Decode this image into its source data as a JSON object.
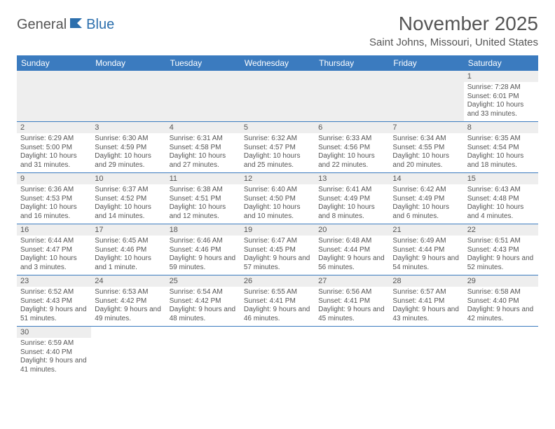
{
  "logo": {
    "general": "General",
    "blue": "Blue"
  },
  "title": "November 2025",
  "location": "Saint Johns, Missouri, United States",
  "day_headers": [
    "Sunday",
    "Monday",
    "Tuesday",
    "Wednesday",
    "Thursday",
    "Friday",
    "Saturday"
  ],
  "colors": {
    "header_bg": "#3b7bbf",
    "header_text": "#ffffff",
    "daynum_bg": "#eeeeee",
    "border": "#3b7bbf",
    "text": "#555555",
    "logo_blue": "#2c6fad"
  },
  "weeks": [
    [
      null,
      null,
      null,
      null,
      null,
      null,
      {
        "n": "1",
        "sr": "Sunrise: 7:28 AM",
        "ss": "Sunset: 6:01 PM",
        "dl": "Daylight: 10 hours and 33 minutes."
      }
    ],
    [
      {
        "n": "2",
        "sr": "Sunrise: 6:29 AM",
        "ss": "Sunset: 5:00 PM",
        "dl": "Daylight: 10 hours and 31 minutes."
      },
      {
        "n": "3",
        "sr": "Sunrise: 6:30 AM",
        "ss": "Sunset: 4:59 PM",
        "dl": "Daylight: 10 hours and 29 minutes."
      },
      {
        "n": "4",
        "sr": "Sunrise: 6:31 AM",
        "ss": "Sunset: 4:58 PM",
        "dl": "Daylight: 10 hours and 27 minutes."
      },
      {
        "n": "5",
        "sr": "Sunrise: 6:32 AM",
        "ss": "Sunset: 4:57 PM",
        "dl": "Daylight: 10 hours and 25 minutes."
      },
      {
        "n": "6",
        "sr": "Sunrise: 6:33 AM",
        "ss": "Sunset: 4:56 PM",
        "dl": "Daylight: 10 hours and 22 minutes."
      },
      {
        "n": "7",
        "sr": "Sunrise: 6:34 AM",
        "ss": "Sunset: 4:55 PM",
        "dl": "Daylight: 10 hours and 20 minutes."
      },
      {
        "n": "8",
        "sr": "Sunrise: 6:35 AM",
        "ss": "Sunset: 4:54 PM",
        "dl": "Daylight: 10 hours and 18 minutes."
      }
    ],
    [
      {
        "n": "9",
        "sr": "Sunrise: 6:36 AM",
        "ss": "Sunset: 4:53 PM",
        "dl": "Daylight: 10 hours and 16 minutes."
      },
      {
        "n": "10",
        "sr": "Sunrise: 6:37 AM",
        "ss": "Sunset: 4:52 PM",
        "dl": "Daylight: 10 hours and 14 minutes."
      },
      {
        "n": "11",
        "sr": "Sunrise: 6:38 AM",
        "ss": "Sunset: 4:51 PM",
        "dl": "Daylight: 10 hours and 12 minutes."
      },
      {
        "n": "12",
        "sr": "Sunrise: 6:40 AM",
        "ss": "Sunset: 4:50 PM",
        "dl": "Daylight: 10 hours and 10 minutes."
      },
      {
        "n": "13",
        "sr": "Sunrise: 6:41 AM",
        "ss": "Sunset: 4:49 PM",
        "dl": "Daylight: 10 hours and 8 minutes."
      },
      {
        "n": "14",
        "sr": "Sunrise: 6:42 AM",
        "ss": "Sunset: 4:49 PM",
        "dl": "Daylight: 10 hours and 6 minutes."
      },
      {
        "n": "15",
        "sr": "Sunrise: 6:43 AM",
        "ss": "Sunset: 4:48 PM",
        "dl": "Daylight: 10 hours and 4 minutes."
      }
    ],
    [
      {
        "n": "16",
        "sr": "Sunrise: 6:44 AM",
        "ss": "Sunset: 4:47 PM",
        "dl": "Daylight: 10 hours and 3 minutes."
      },
      {
        "n": "17",
        "sr": "Sunrise: 6:45 AM",
        "ss": "Sunset: 4:46 PM",
        "dl": "Daylight: 10 hours and 1 minute."
      },
      {
        "n": "18",
        "sr": "Sunrise: 6:46 AM",
        "ss": "Sunset: 4:46 PM",
        "dl": "Daylight: 9 hours and 59 minutes."
      },
      {
        "n": "19",
        "sr": "Sunrise: 6:47 AM",
        "ss": "Sunset: 4:45 PM",
        "dl": "Daylight: 9 hours and 57 minutes."
      },
      {
        "n": "20",
        "sr": "Sunrise: 6:48 AM",
        "ss": "Sunset: 4:44 PM",
        "dl": "Daylight: 9 hours and 56 minutes."
      },
      {
        "n": "21",
        "sr": "Sunrise: 6:49 AM",
        "ss": "Sunset: 4:44 PM",
        "dl": "Daylight: 9 hours and 54 minutes."
      },
      {
        "n": "22",
        "sr": "Sunrise: 6:51 AM",
        "ss": "Sunset: 4:43 PM",
        "dl": "Daylight: 9 hours and 52 minutes."
      }
    ],
    [
      {
        "n": "23",
        "sr": "Sunrise: 6:52 AM",
        "ss": "Sunset: 4:43 PM",
        "dl": "Daylight: 9 hours and 51 minutes."
      },
      {
        "n": "24",
        "sr": "Sunrise: 6:53 AM",
        "ss": "Sunset: 4:42 PM",
        "dl": "Daylight: 9 hours and 49 minutes."
      },
      {
        "n": "25",
        "sr": "Sunrise: 6:54 AM",
        "ss": "Sunset: 4:42 PM",
        "dl": "Daylight: 9 hours and 48 minutes."
      },
      {
        "n": "26",
        "sr": "Sunrise: 6:55 AM",
        "ss": "Sunset: 4:41 PM",
        "dl": "Daylight: 9 hours and 46 minutes."
      },
      {
        "n": "27",
        "sr": "Sunrise: 6:56 AM",
        "ss": "Sunset: 4:41 PM",
        "dl": "Daylight: 9 hours and 45 minutes."
      },
      {
        "n": "28",
        "sr": "Sunrise: 6:57 AM",
        "ss": "Sunset: 4:41 PM",
        "dl": "Daylight: 9 hours and 43 minutes."
      },
      {
        "n": "29",
        "sr": "Sunrise: 6:58 AM",
        "ss": "Sunset: 4:40 PM",
        "dl": "Daylight: 9 hours and 42 minutes."
      }
    ],
    [
      {
        "n": "30",
        "sr": "Sunrise: 6:59 AM",
        "ss": "Sunset: 4:40 PM",
        "dl": "Daylight: 9 hours and 41 minutes."
      },
      null,
      null,
      null,
      null,
      null,
      null
    ]
  ]
}
